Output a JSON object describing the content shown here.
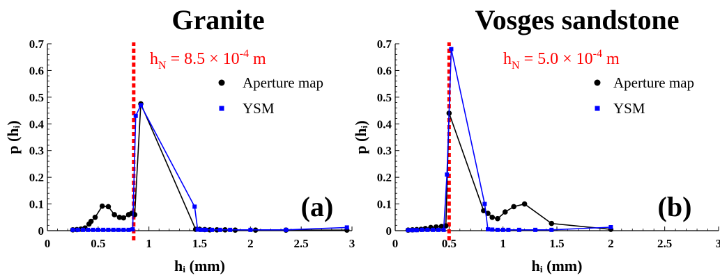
{
  "chart_data": [
    {
      "type": "line",
      "panel_label": "(a)",
      "title": "Granite",
      "xlabel": "hᵢ (mm)",
      "ylabel": "p (hᵢ)",
      "xlim": [
        0,
        3
      ],
      "ylim": [
        0,
        0.7
      ],
      "xticks": [
        0,
        0.5,
        1,
        1.5,
        2,
        2.5,
        3
      ],
      "xtick_labels": [
        "0",
        "0.5",
        "1",
        "1.5",
        "2",
        "2.5",
        "3"
      ],
      "yticks": [
        0,
        0.1,
        0.2,
        0.3,
        0.4,
        0.5,
        0.6,
        0.7
      ],
      "ytick_labels": [
        "0",
        "0.1",
        "0.2",
        "0.3",
        "0.4",
        "0.5",
        "0.6",
        "0.7"
      ],
      "annotation": {
        "x": 0.85,
        "parts": [
          "h",
          "N",
          " = 8.5 × 10",
          "-4",
          " m"
        ],
        "color": "#ff0000"
      },
      "legend": {
        "position": "top-right"
      },
      "series": [
        {
          "name": "Aperture map",
          "color": "#000000",
          "marker": "circle",
          "x": [
            0.25,
            0.29,
            0.33,
            0.37,
            0.41,
            0.43,
            0.47,
            0.54,
            0.6,
            0.66,
            0.71,
            0.75,
            0.8,
            0.83,
            0.86,
            0.92,
            1.46,
            1.5,
            1.55,
            1.6,
            1.67,
            1.75,
            1.85,
            2.05,
            2.35,
            2.95
          ],
          "values": [
            0.003,
            0.004,
            0.006,
            0.01,
            0.025,
            0.035,
            0.05,
            0.092,
            0.09,
            0.06,
            0.05,
            0.048,
            0.06,
            0.065,
            0.06,
            0.475,
            0.005,
            0.005,
            0.004,
            0.003,
            0.003,
            0.003,
            0.002,
            0.002,
            0.002,
            0.002
          ]
        },
        {
          "name": "YSM",
          "color": "#0000ff",
          "marker": "square",
          "x": [
            0.25,
            0.3,
            0.35,
            0.4,
            0.45,
            0.5,
            0.55,
            0.6,
            0.65,
            0.7,
            0.75,
            0.8,
            0.84,
            0.87,
            0.92,
            1.45,
            1.48,
            1.52,
            1.56,
            1.62,
            1.7,
            1.8,
            2.0,
            2.35,
            2.95
          ],
          "values": [
            0.003,
            0.003,
            0.003,
            0.003,
            0.003,
            0.003,
            0.003,
            0.003,
            0.003,
            0.003,
            0.003,
            0.003,
            0.005,
            0.43,
            0.47,
            0.09,
            0.004,
            0.003,
            0.003,
            0.003,
            0.003,
            0.003,
            0.003,
            0.003,
            0.012
          ]
        }
      ]
    },
    {
      "type": "line",
      "panel_label": "(b)",
      "title": "Vosges sandstone",
      "xlabel": "hᵢ (mm)",
      "ylabel": "p (hᵢ)",
      "xlim": [
        0,
        3
      ],
      "ylim": [
        0,
        0.7
      ],
      "xticks": [
        0,
        0.5,
        1,
        1.5,
        2,
        2.5,
        3
      ],
      "xtick_labels": [
        "0",
        "0.5",
        "1",
        "1.5",
        "2",
        "2.5",
        "3"
      ],
      "yticks": [
        0,
        0.1,
        0.2,
        0.3,
        0.4,
        0.5,
        0.6,
        0.7
      ],
      "ytick_labels": [
        "0",
        "0.1",
        "0.2",
        "0.3",
        "0.4",
        "0.5",
        "0.6",
        "0.7"
      ],
      "annotation": {
        "x": 0.5,
        "parts": [
          "h",
          "N",
          " = 5.0 × 10",
          "-4",
          " m"
        ],
        "color": "#ff0000"
      },
      "legend": {
        "position": "top-right"
      },
      "series": [
        {
          "name": "Aperture map",
          "color": "#000000",
          "marker": "circle",
          "x": [
            0.12,
            0.16,
            0.2,
            0.24,
            0.28,
            0.33,
            0.38,
            0.43,
            0.47,
            0.5,
            0.82,
            0.86,
            0.9,
            0.95,
            1.02,
            1.1,
            1.2,
            1.45,
            2.0
          ],
          "values": [
            0.002,
            0.003,
            0.004,
            0.005,
            0.008,
            0.012,
            0.014,
            0.016,
            0.018,
            0.44,
            0.075,
            0.065,
            0.05,
            0.045,
            0.07,
            0.09,
            0.1,
            0.027,
            0.005
          ]
        },
        {
          "name": "YSM",
          "color": "#0000ff",
          "marker": "square",
          "x": [
            0.12,
            0.16,
            0.2,
            0.25,
            0.3,
            0.35,
            0.4,
            0.45,
            0.48,
            0.52,
            0.83,
            0.86,
            0.9,
            0.95,
            1.0,
            1.05,
            1.15,
            1.3,
            1.45,
            2.0
          ],
          "values": [
            0.002,
            0.002,
            0.002,
            0.003,
            0.003,
            0.003,
            0.003,
            0.003,
            0.21,
            0.68,
            0.1,
            0.005,
            0.004,
            0.003,
            0.003,
            0.003,
            0.003,
            0.003,
            0.003,
            0.013
          ]
        }
      ]
    }
  ]
}
